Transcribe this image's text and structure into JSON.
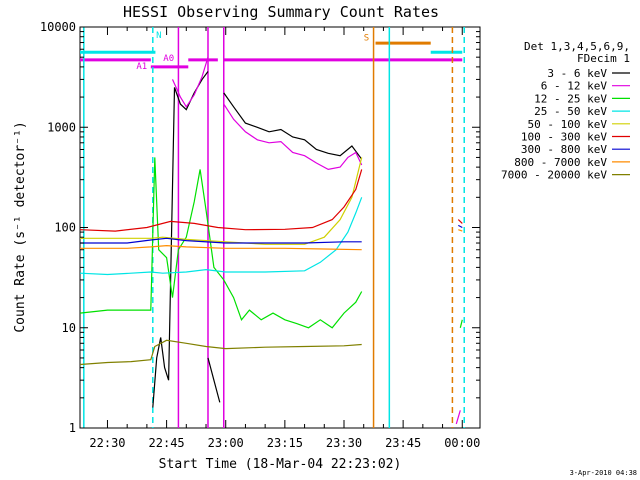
{
  "chart_data": {
    "type": "line",
    "title": "HESSI Observing Summary Count Rates",
    "xlabel": "Start Time (18-Mar-04 22:23:02)",
    "ylabel": "Count Rate (s⁻¹ detector⁻¹)",
    "x_ticks": [
      "22:30",
      "22:45",
      "23:00",
      "23:15",
      "23:30",
      "23:45",
      "00:00"
    ],
    "y_ticks": [
      "1",
      "10",
      "100",
      "1000",
      "10000"
    ],
    "y_scale": "log",
    "ylim": [
      1,
      10000
    ],
    "xlim": [
      "22:23:02",
      "00:04:30"
    ],
    "grid": false,
    "legend_position": "right",
    "legend_header": [
      "Det 1,3,4,5,6,9,",
      "FDecim 1"
    ],
    "timestamp": "3-Apr-2010 04:38",
    "annotations": [
      {
        "text": "N",
        "color": "#00e5e5",
        "x": "22:42:20",
        "y": 7800
      },
      {
        "text": "A0",
        "color": "#e000e0",
        "x": "22:44:10",
        "y": 4600
      },
      {
        "text": "A1",
        "color": "#e000e0",
        "x": "22:37:20",
        "y": 3800
      },
      {
        "text": "S",
        "color": "#e07b00",
        "x": "23:35:00",
        "y": 7300
      }
    ],
    "flag_bars": [
      {
        "color": "#00e5e5",
        "segments": [
          [
            "22:23:02",
            "22:42:10",
            5600
          ],
          [
            "23:52:00",
            "00:00:00",
            5600
          ]
        ]
      },
      {
        "color": "#e000e0",
        "segments": [
          [
            "22:23:02",
            "22:41:00",
            4700
          ],
          [
            "22:41:00",
            "22:50:30",
            4000
          ],
          [
            "22:50:30",
            "22:58:00",
            4700
          ],
          [
            "22:59:30",
            "00:00:00",
            4700
          ]
        ]
      },
      {
        "color": "#e07b00",
        "segments": [
          [
            "23:38:00",
            "23:52:00",
            6900
          ]
        ]
      }
    ],
    "vertical_lines": [
      {
        "color": "#00e5e5",
        "x": "22:24:00",
        "dashed": false
      },
      {
        "color": "#00e5e5",
        "x": "22:41:30",
        "dashed": true
      },
      {
        "color": "#e000e0",
        "x": "22:48:00",
        "dashed": false
      },
      {
        "color": "#e000e0",
        "x": "22:55:30",
        "dashed": false
      },
      {
        "color": "#e000e0",
        "x": "22:59:30",
        "dashed": false
      },
      {
        "color": "#e07b00",
        "x": "23:37:30",
        "dashed": false
      },
      {
        "color": "#00e5e5",
        "x": "23:41:30",
        "dashed": false
      },
      {
        "color": "#e07b00",
        "x": "23:57:30",
        "dashed": true
      },
      {
        "color": "#00e5e5",
        "x": "00:00:30",
        "dashed": true
      }
    ],
    "series": [
      {
        "name": "3 - 6 keV",
        "color": "#000000",
        "segments": [
          [
            [
              "22:41:30",
              1.6
            ],
            [
              "22:42:30",
              5
            ],
            [
              "22:43:30",
              8
            ],
            [
              "22:44:30",
              4
            ],
            [
              "22:45:30",
              3
            ],
            [
              "22:47:00",
              2500
            ],
            [
              "22:48:30",
              1700
            ],
            [
              "22:50:00",
              1500
            ],
            [
              "22:52:00",
              2200
            ],
            [
              "22:54:00",
              3000
            ],
            [
              "22:55:30",
              3600
            ]
          ],
          [
            [
              "22:55:30",
              5
            ],
            [
              "22:57:00",
              3
            ],
            [
              "22:58:30",
              1.8
            ]
          ],
          [
            [
              "22:59:30",
              2200
            ],
            [
              "23:02:00",
              1600
            ],
            [
              "23:05:00",
              1100
            ],
            [
              "23:08:00",
              1000
            ],
            [
              "23:11:00",
              900
            ],
            [
              "23:14:00",
              950
            ],
            [
              "23:17:00",
              800
            ],
            [
              "23:20:00",
              750
            ],
            [
              "23:23:00",
              600
            ],
            [
              "23:26:00",
              550
            ],
            [
              "23:29:00",
              520
            ],
            [
              "23:32:00",
              650
            ],
            [
              "23:34:30",
              480
            ]
          ]
        ]
      },
      {
        "name": "6 - 12 keV",
        "color": "#e000e0",
        "segments": [
          [
            [
              "22:46:30",
              3000
            ],
            [
              "22:48:30",
              2000
            ],
            [
              "22:50:00",
              1600
            ],
            [
              "22:52:00",
              2100
            ],
            [
              "22:54:00",
              3200
            ],
            [
              "22:55:30",
              5000
            ]
          ],
          [
            [
              "22:59:30",
              1700
            ],
            [
              "23:02:00",
              1200
            ],
            [
              "23:05:00",
              900
            ],
            [
              "23:08:00",
              750
            ],
            [
              "23:11:00",
              700
            ],
            [
              "23:14:00",
              720
            ],
            [
              "23:17:00",
              560
            ],
            [
              "23:20:00",
              520
            ],
            [
              "23:23:00",
              440
            ],
            [
              "23:26:00",
              380
            ],
            [
              "23:29:00",
              400
            ],
            [
              "23:31:00",
              500
            ],
            [
              "23:33:00",
              560
            ],
            [
              "23:34:30",
              420
            ]
          ],
          [
            [
              "23:58:30",
              1.1
            ],
            [
              "23:59:30",
              1.5
            ]
          ]
        ]
      },
      {
        "name": "12 - 25 keV",
        "color": "#00e000",
        "segments": [
          [
            [
              "22:23:02",
              14
            ],
            [
              "22:30:00",
              15
            ],
            [
              "22:36:00",
              15
            ],
            [
              "22:41:00",
              15
            ],
            [
              "22:42:00",
              500
            ],
            [
              "22:43:00",
              60
            ],
            [
              "22:45:00",
              50
            ],
            [
              "22:46:30",
              20
            ],
            [
              "22:48:00",
              60
            ],
            [
              "22:50:00",
              80
            ],
            [
              "22:52:00",
              180
            ],
            [
              "22:53:30",
              380
            ],
            [
              "22:55:00",
              150
            ],
            [
              "22:57:00",
              40
            ],
            [
              "22:59:30",
              30
            ],
            [
              "23:02:00",
              20
            ],
            [
              "23:04:00",
              12
            ],
            [
              "23:06:00",
              15
            ],
            [
              "23:09:00",
              12
            ],
            [
              "23:12:00",
              14
            ],
            [
              "23:15:00",
              12
            ],
            [
              "23:18:00",
              11
            ],
            [
              "23:21:00",
              10
            ],
            [
              "23:24:00",
              12
            ],
            [
              "23:27:00",
              10
            ],
            [
              "23:30:00",
              14
            ],
            [
              "23:33:00",
              18
            ],
            [
              "23:34:30",
              23
            ]
          ],
          [
            [
              "23:59:30",
              10
            ],
            [
              "00:00:00",
              12
            ]
          ]
        ]
      },
      {
        "name": "25 - 50 keV",
        "color": "#00e5e5",
        "segments": [
          [
            [
              "22:23:02",
              35
            ],
            [
              "22:30:00",
              34
            ],
            [
              "22:36:00",
              35
            ],
            [
              "22:41:00",
              36
            ],
            [
              "22:44:00",
              35
            ],
            [
              "22:50:00",
              36
            ],
            [
              "22:55:00",
              38
            ],
            [
              "23:00:00",
              36
            ],
            [
              "23:10:00",
              36
            ],
            [
              "23:20:00",
              37
            ],
            [
              "23:24:00",
              45
            ],
            [
              "23:28:00",
              60
            ],
            [
              "23:31:00",
              90
            ],
            [
              "23:33:00",
              140
            ],
            [
              "23:34:30",
              200
            ]
          ]
        ]
      },
      {
        "name": "50 - 100 keV",
        "color": "#d0d000",
        "segments": [
          [
            [
              "22:23:02",
              78
            ],
            [
              "22:41:00",
              78
            ],
            [
              "22:44:00",
              80
            ],
            [
              "22:50:00",
              76
            ],
            [
              "23:00:00",
              72
            ],
            [
              "23:10:00",
              68
            ],
            [
              "23:20:00",
              68
            ],
            [
              "23:25:00",
              80
            ],
            [
              "23:29:00",
              120
            ],
            [
              "23:32:00",
              200
            ],
            [
              "23:34:30",
              500
            ]
          ]
        ]
      },
      {
        "name": "100 - 300 keV",
        "color": "#e00000",
        "segments": [
          [
            [
              "22:23:02",
              95
            ],
            [
              "22:32:00",
              92
            ],
            [
              "22:40:00",
              100
            ],
            [
              "22:46:00",
              115
            ],
            [
              "22:52:00",
              110
            ],
            [
              "22:58:00",
              100
            ],
            [
              "23:05:00",
              95
            ],
            [
              "23:15:00",
              96
            ],
            [
              "23:22:00",
              100
            ],
            [
              "23:27:00",
              120
            ],
            [
              "23:30:00",
              160
            ],
            [
              "23:33:00",
              240
            ],
            [
              "23:34:30",
              380
            ]
          ],
          [
            [
              "23:59:00",
              120
            ],
            [
              "00:00:00",
              110
            ]
          ]
        ]
      },
      {
        "name": "300 - 800 keV",
        "color": "#0000d0",
        "segments": [
          [
            [
              "22:23:02",
              70
            ],
            [
              "22:35:00",
              70
            ],
            [
              "22:41:00",
              75
            ],
            [
              "22:45:00",
              78
            ],
            [
              "22:50:00",
              74
            ],
            [
              "23:00:00",
              70
            ],
            [
              "23:10:00",
              70
            ],
            [
              "23:20:00",
              70
            ],
            [
              "23:30:00",
              72
            ],
            [
              "23:34:30",
              72
            ]
          ],
          [
            [
              "23:59:00",
              105
            ],
            [
              "00:00:00",
              100
            ]
          ]
        ]
      },
      {
        "name": "800 - 7000 keV",
        "color": "#ff8c00",
        "segments": [
          [
            [
              "22:23:02",
              62
            ],
            [
              "22:35:00",
              62
            ],
            [
              "22:41:00",
              64
            ],
            [
              "22:45:00",
              66
            ],
            [
              "22:50:00",
              64
            ],
            [
              "23:00:00",
              62
            ],
            [
              "23:15:00",
              62
            ],
            [
              "23:25:00",
              61
            ],
            [
              "23:34:30",
              60
            ]
          ],
          [
            [
              "23:59:00",
              95
            ],
            [
              "00:00:00",
              92
            ]
          ]
        ]
      },
      {
        "name": "7000 - 20000 keV",
        "color": "#808000",
        "segments": [
          [
            [
              "22:23:02",
              4.3
            ],
            [
              "22:30:00",
              4.5
            ],
            [
              "22:36:00",
              4.6
            ],
            [
              "22:41:00",
              4.8
            ],
            [
              "22:42:00",
              6.5
            ],
            [
              "22:45:00",
              7.5
            ],
            [
              "22:50:00",
              7
            ],
            [
              "22:55:00",
              6.5
            ],
            [
              "23:00:00",
              6.2
            ],
            [
              "23:10:00",
              6.4
            ],
            [
              "23:20:00",
              6.5
            ],
            [
              "23:30:00",
              6.6
            ],
            [
              "23:34:30",
              6.8
            ]
          ]
        ]
      }
    ]
  }
}
